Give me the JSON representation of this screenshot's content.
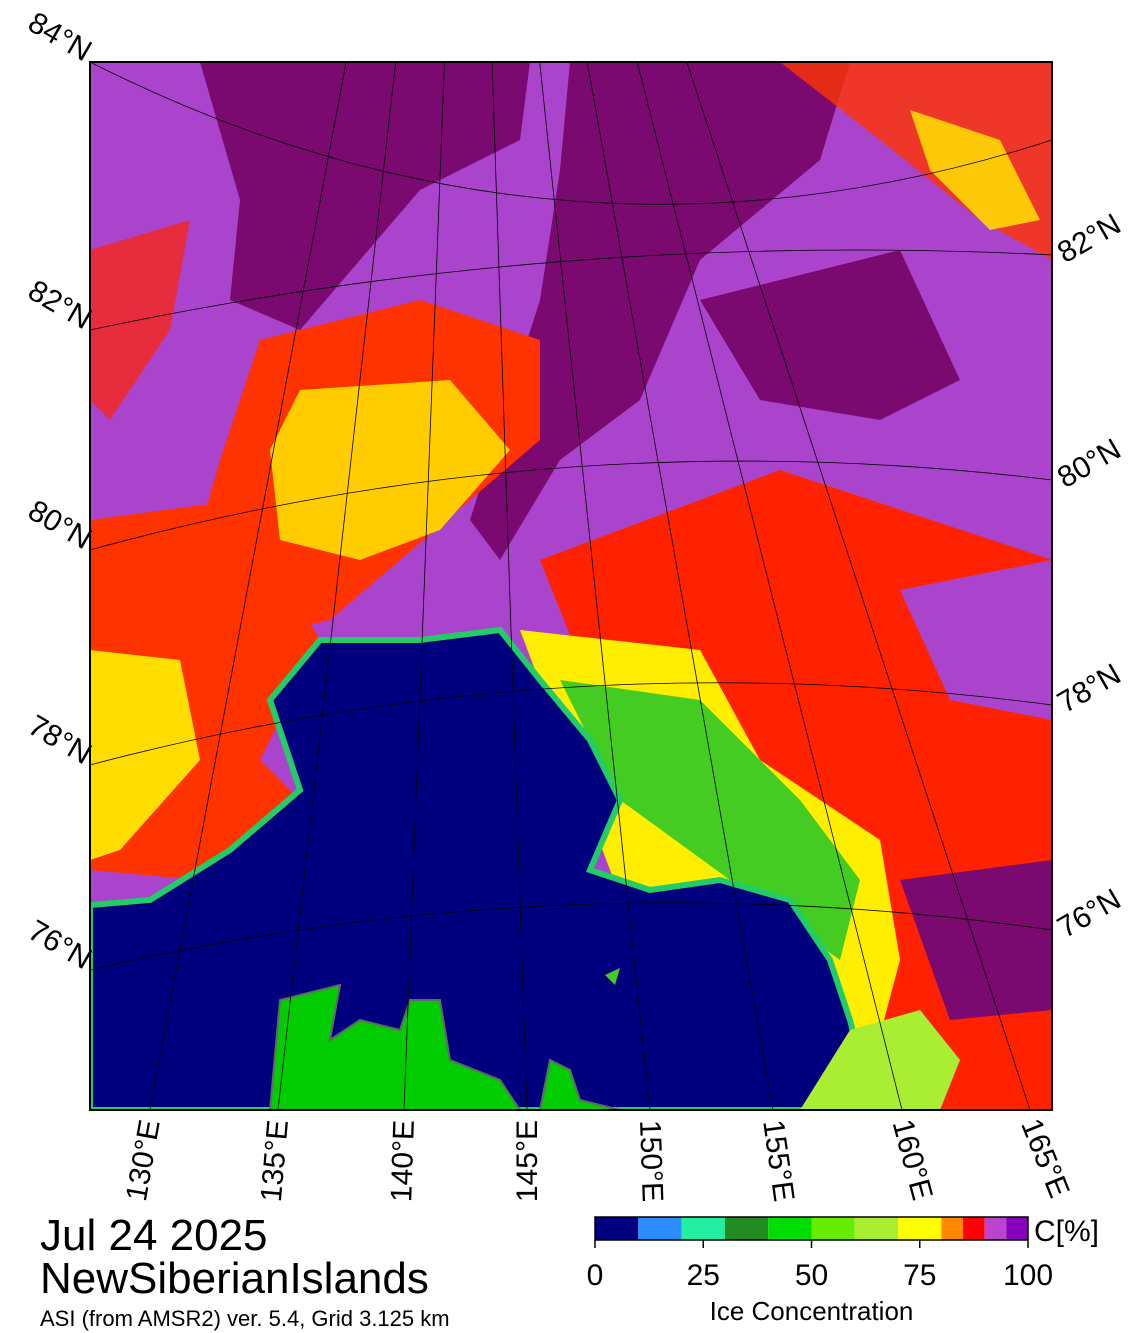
{
  "date": "Jul 24 2025",
  "region": "NewSiberianIslands",
  "source": "ASI (from AMSR2) ver. 5.4,  Grid 3.125 km",
  "lat_labels_left": [
    "84°N",
    "82°N",
    "80°N",
    "78°N",
    "76°N"
  ],
  "lat_labels_right": [
    "82°N",
    "80°N",
    "78°N",
    "76°N"
  ],
  "lon_labels": [
    "130°E",
    "135°E",
    "140°E",
    "145°E",
    "150°E",
    "155°E",
    "160°E",
    "165°E"
  ],
  "colorbar": {
    "label": "Ice Concentration",
    "unit": "C[%]",
    "lim": [
      0,
      100
    ],
    "ticks": [
      0,
      25,
      50,
      75,
      100
    ],
    "bounds": [
      0,
      10,
      20,
      30,
      40,
      50,
      60,
      70,
      80,
      85,
      90,
      95,
      100
    ],
    "colors": [
      "#00007f",
      "#2b8cff",
      "#22f0a0",
      "#228b22",
      "#00dd00",
      "#66ee00",
      "#aaee33",
      "#ffff00",
      "#ff8800",
      "#ff0000",
      "#bb44cc",
      "#8800bb"
    ]
  }
}
